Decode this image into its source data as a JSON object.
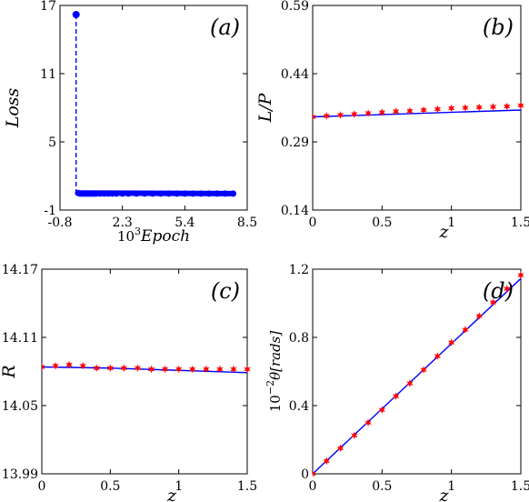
{
  "chart_data": [
    {
      "id": "a",
      "type": "scatter",
      "panel_label": "(a)",
      "xlabel": "10^3 Epoch",
      "xlabel_base": "10",
      "xlabel_exp": "3",
      "xlabel_rest": "Epoch",
      "ylabel": "Loss",
      "xlim": [
        -0.8,
        8.5
      ],
      "ylim": [
        -1,
        17
      ],
      "xticks": [
        -0.8,
        2.3,
        5.4,
        8.5
      ],
      "xtick_labels": [
        "-0.8",
        "2.3",
        "5.4",
        "8.5"
      ],
      "yticks": [
        -1,
        5,
        11,
        17
      ],
      "ytick_labels": [
        "-1",
        "5",
        "11",
        "17"
      ],
      "series": [
        {
          "style": "dashed-stem",
          "color": "#0000ff",
          "x": [
            0,
            0.1,
            0.2,
            0.3,
            0.4,
            0.5,
            0.6,
            0.7,
            0.8,
            0.9,
            1.0,
            1.2,
            1.4,
            1.6,
            1.8,
            2.0,
            2.3,
            2.6,
            3.0,
            3.4,
            3.8,
            4.2,
            4.6,
            5.0,
            5.4,
            5.8,
            6.2,
            6.6,
            7.0,
            7.4,
            7.8
          ],
          "y": [
            16.2,
            0.5,
            0.45,
            0.45,
            0.45,
            0.45,
            0.45,
            0.45,
            0.45,
            0.45,
            0.45,
            0.45,
            0.45,
            0.45,
            0.45,
            0.45,
            0.45,
            0.45,
            0.45,
            0.45,
            0.45,
            0.45,
            0.45,
            0.45,
            0.45,
            0.45,
            0.45,
            0.45,
            0.45,
            0.45,
            0.45
          ]
        }
      ]
    },
    {
      "id": "b",
      "type": "line",
      "panel_label": "(b)",
      "xlabel": "z",
      "ylabel": "L/P",
      "xlim": [
        0,
        1.5
      ],
      "ylim": [
        0.14,
        0.59
      ],
      "xticks": [
        0,
        0.5,
        1,
        1.5
      ],
      "xtick_labels": [
        "0",
        "0.5",
        "1",
        "1.5"
      ],
      "yticks": [
        0.14,
        0.29,
        0.44,
        0.59
      ],
      "ytick_labels": [
        "0.14",
        "0.29",
        "0.44",
        "0.59"
      ],
      "series": [
        {
          "style": "line",
          "color": "#0000ff",
          "x": [
            0,
            1.5
          ],
          "y": [
            0.345,
            0.36
          ]
        },
        {
          "style": "markers",
          "color": "#ff0000",
          "x": [
            0,
            0.1,
            0.2,
            0.3,
            0.4,
            0.5,
            0.6,
            0.7,
            0.8,
            0.9,
            1.0,
            1.1,
            1.2,
            1.3,
            1.4,
            1.5
          ],
          "y": [
            0.345,
            0.347,
            0.349,
            0.351,
            0.353,
            0.355,
            0.357,
            0.358,
            0.36,
            0.362,
            0.364,
            0.365,
            0.366,
            0.367,
            0.368,
            0.37
          ]
        }
      ]
    },
    {
      "id": "c",
      "type": "line",
      "panel_label": "(c)",
      "xlabel": "z",
      "ylabel": "R",
      "xlim": [
        0,
        1.5
      ],
      "ylim": [
        13.99,
        14.17
      ],
      "xticks": [
        0,
        0.5,
        1,
        1.5
      ],
      "xtick_labels": [
        "0",
        "0.5",
        "1",
        "1.5"
      ],
      "yticks": [
        13.99,
        14.05,
        14.11,
        14.17
      ],
      "ytick_labels": [
        "13.99",
        "14.05",
        "14.11",
        "14.17"
      ],
      "series": [
        {
          "style": "line",
          "color": "#0000ff",
          "x": [
            0,
            0.5,
            1.0,
            1.5
          ],
          "y": [
            14.084,
            14.083,
            14.081,
            14.079
          ]
        },
        {
          "style": "markers",
          "color": "#ff0000",
          "x": [
            0,
            0.1,
            0.2,
            0.3,
            0.4,
            0.5,
            0.6,
            0.7,
            0.8,
            0.9,
            1.0,
            1.1,
            1.2,
            1.3,
            1.4,
            1.5
          ],
          "y": [
            14.084,
            14.085,
            14.086,
            14.085,
            14.083,
            14.083,
            14.083,
            14.083,
            14.082,
            14.082,
            14.082,
            14.082,
            14.082,
            14.082,
            14.082,
            14.082
          ]
        }
      ]
    },
    {
      "id": "d",
      "type": "line",
      "panel_label": "(d)",
      "xlabel": "z",
      "ylabel": "10^-2 θ[rads]",
      "ylabel_base": "10",
      "ylabel_exp": "−2",
      "ylabel_rest": "θ[rads]",
      "xlim": [
        0,
        1.5
      ],
      "ylim": [
        0,
        1.2
      ],
      "xticks": [
        0,
        0.5,
        1,
        1.5
      ],
      "xtick_labels": [
        "0",
        "0.5",
        "1",
        "1.5"
      ],
      "yticks": [
        0,
        0.4,
        0.8,
        1.2
      ],
      "ytick_labels": [
        "0",
        "0.4",
        "0.8",
        "1.2"
      ],
      "series": [
        {
          "style": "line",
          "color": "#0000ff",
          "x": [
            0,
            1.5
          ],
          "y": [
            0,
            1.145
          ]
        },
        {
          "style": "markers",
          "color": "#ff0000",
          "x": [
            0,
            0.1,
            0.2,
            0.3,
            0.4,
            0.5,
            0.6,
            0.7,
            0.8,
            0.9,
            1.0,
            1.1,
            1.2,
            1.3,
            1.4,
            1.5
          ],
          "y": [
            0,
            0.075,
            0.15,
            0.225,
            0.3,
            0.375,
            0.455,
            0.53,
            0.61,
            0.69,
            0.77,
            0.845,
            0.925,
            1.005,
            1.085,
            1.165
          ]
        }
      ]
    }
  ]
}
